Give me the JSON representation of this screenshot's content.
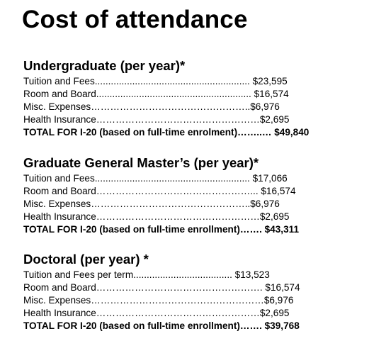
{
  "title": "Cost of attendance",
  "sections": [
    {
      "heading": "Undergraduate (per year)*",
      "rows": [
        "Tuition and Fees.......................................................... $23,595",
        "Room and Board.......................................................... $16,574",
        "Misc. Expenses…………………………………………..$6,976",
        "Health Insurance……………………………………………$2,695",
        "TOTAL FOR I-20 (based on full-time enrolment)……..… $49,840"
      ]
    },
    {
      "heading": "Graduate General Master’s (per year)*",
      "rows": [
        "Tuition and Fees.......................................................... $17,066",
        "Room and Board…………………………………………... $16,574",
        "Misc. Expenses…………………………………………..$6,976",
        "Health Insurance……………………………………………$2,695",
        "TOTAL FOR I-20 (based on full-time enrollment)……. $43,311"
      ]
    },
    {
      "heading": "Doctoral (per year) *",
      "rows": [
        "Tuition and Fees per term..................................... $13,523",
        "Room and Board……………………………………………. $16,574",
        "Misc. Expenses………………………………………………$6,976",
        "Health Insurance……………………………………………$2,695",
        "TOTAL FOR I-20 (based on full-time enrollment)……. $39,768"
      ]
    }
  ]
}
